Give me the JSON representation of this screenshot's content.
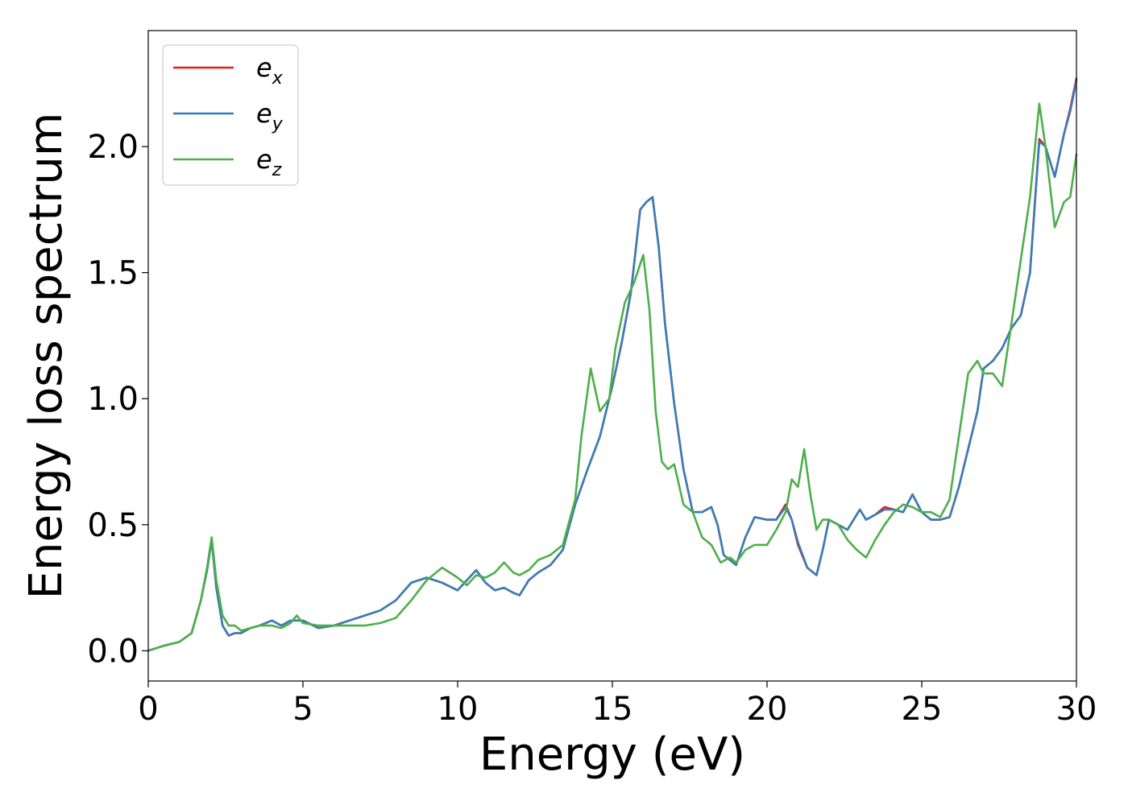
{
  "chart_data": {
    "type": "line",
    "title": "",
    "xlabel": "Energy (eV)",
    "ylabel": "Energy loss spectrum",
    "xlim": [
      0,
      30
    ],
    "ylim": [
      -0.12,
      2.46
    ],
    "xticks": [
      0,
      5,
      10,
      15,
      20,
      25,
      30
    ],
    "xtick_labels": [
      "0",
      "5",
      "10",
      "15",
      "20",
      "25",
      "30"
    ],
    "yticks": [
      0.0,
      0.5,
      1.0,
      1.5,
      2.0
    ],
    "ytick_labels": [
      "0.0",
      "0.5",
      "1.0",
      "1.5",
      "2.0"
    ],
    "grid": false,
    "legend_position": "top-left",
    "series": [
      {
        "name": "e_x",
        "label_base": "e",
        "label_sub": "x",
        "color": "#e41a1c",
        "x": [
          0,
          0.5,
          1.0,
          1.4,
          1.7,
          1.9,
          2.05,
          2.2,
          2.4,
          2.6,
          2.8,
          3.0,
          3.3,
          3.6,
          4.0,
          4.3,
          4.6,
          5.0,
          5.5,
          6.0,
          6.5,
          7.0,
          7.5,
          8.0,
          8.5,
          9.0,
          9.5,
          10.0,
          10.3,
          10.6,
          10.9,
          11.2,
          11.5,
          11.8,
          12.0,
          12.3,
          12.6,
          13.0,
          13.4,
          13.8,
          14.2,
          14.6,
          15.0,
          15.3,
          15.6,
          15.9,
          16.1,
          16.3,
          16.5,
          16.7,
          17.0,
          17.3,
          17.6,
          17.9,
          18.2,
          18.4,
          18.6,
          18.8,
          19.0,
          19.3,
          19.6,
          20.0,
          20.3,
          20.6,
          20.8,
          21.0,
          21.3,
          21.6,
          21.8,
          22.0,
          22.3,
          22.6,
          22.8,
          23.0,
          23.2,
          23.5,
          23.8,
          24.1,
          24.4,
          24.7,
          25.0,
          25.3,
          25.6,
          25.9,
          26.2,
          26.5,
          26.8,
          27.0,
          27.3,
          27.6,
          27.9,
          28.2,
          28.5,
          28.8,
          29.0,
          29.3,
          29.6,
          29.8,
          30.0
        ],
        "values": [
          0,
          0.02,
          0.035,
          0.07,
          0.2,
          0.32,
          0.44,
          0.25,
          0.1,
          0.06,
          0.07,
          0.07,
          0.09,
          0.1,
          0.12,
          0.1,
          0.12,
          0.12,
          0.09,
          0.1,
          0.12,
          0.14,
          0.16,
          0.2,
          0.27,
          0.29,
          0.27,
          0.24,
          0.28,
          0.32,
          0.27,
          0.24,
          0.25,
          0.23,
          0.22,
          0.28,
          0.31,
          0.34,
          0.4,
          0.58,
          0.72,
          0.85,
          1.05,
          1.22,
          1.42,
          1.75,
          1.78,
          1.8,
          1.6,
          1.3,
          0.98,
          0.72,
          0.55,
          0.55,
          0.57,
          0.5,
          0.38,
          0.36,
          0.34,
          0.45,
          0.53,
          0.52,
          0.52,
          0.58,
          0.52,
          0.42,
          0.33,
          0.3,
          0.4,
          0.52,
          0.5,
          0.48,
          0.52,
          0.56,
          0.52,
          0.54,
          0.57,
          0.56,
          0.55,
          0.62,
          0.55,
          0.52,
          0.52,
          0.53,
          0.65,
          0.8,
          0.95,
          1.12,
          1.15,
          1.2,
          1.28,
          1.33,
          1.5,
          2.03,
          2.0,
          1.88,
          2.05,
          2.15,
          2.27
        ]
      },
      {
        "name": "e_y",
        "label_base": "e",
        "label_sub": "y",
        "color": "#377eb8",
        "x": [
          0,
          0.5,
          1.0,
          1.4,
          1.7,
          1.9,
          2.05,
          2.2,
          2.4,
          2.6,
          2.8,
          3.0,
          3.3,
          3.6,
          4.0,
          4.3,
          4.6,
          5.0,
          5.5,
          6.0,
          6.5,
          7.0,
          7.5,
          8.0,
          8.5,
          9.0,
          9.5,
          10.0,
          10.3,
          10.6,
          10.9,
          11.2,
          11.5,
          11.8,
          12.0,
          12.3,
          12.6,
          13.0,
          13.4,
          13.8,
          14.2,
          14.6,
          15.0,
          15.3,
          15.6,
          15.9,
          16.1,
          16.3,
          16.5,
          16.7,
          17.0,
          17.3,
          17.6,
          17.9,
          18.2,
          18.4,
          18.6,
          18.8,
          19.0,
          19.3,
          19.6,
          20.0,
          20.3,
          20.6,
          20.8,
          21.0,
          21.3,
          21.6,
          21.8,
          22.0,
          22.3,
          22.6,
          22.8,
          23.0,
          23.2,
          23.5,
          23.8,
          24.1,
          24.4,
          24.7,
          25.0,
          25.3,
          25.6,
          25.9,
          26.2,
          26.5,
          26.8,
          27.0,
          27.3,
          27.6,
          27.9,
          28.2,
          28.5,
          28.8,
          29.0,
          29.3,
          29.6,
          29.8,
          30.0
        ],
        "values": [
          0,
          0.02,
          0.035,
          0.07,
          0.2,
          0.32,
          0.44,
          0.25,
          0.1,
          0.06,
          0.07,
          0.07,
          0.09,
          0.1,
          0.12,
          0.1,
          0.12,
          0.12,
          0.09,
          0.1,
          0.12,
          0.14,
          0.16,
          0.2,
          0.27,
          0.29,
          0.27,
          0.24,
          0.28,
          0.32,
          0.27,
          0.24,
          0.25,
          0.23,
          0.22,
          0.28,
          0.31,
          0.34,
          0.4,
          0.58,
          0.72,
          0.85,
          1.05,
          1.22,
          1.42,
          1.75,
          1.78,
          1.8,
          1.6,
          1.3,
          0.98,
          0.72,
          0.55,
          0.55,
          0.57,
          0.5,
          0.38,
          0.36,
          0.34,
          0.45,
          0.53,
          0.52,
          0.52,
          0.57,
          0.52,
          0.43,
          0.33,
          0.3,
          0.4,
          0.52,
          0.5,
          0.48,
          0.52,
          0.56,
          0.52,
          0.54,
          0.56,
          0.56,
          0.55,
          0.62,
          0.55,
          0.52,
          0.52,
          0.53,
          0.65,
          0.8,
          0.95,
          1.12,
          1.15,
          1.2,
          1.28,
          1.33,
          1.5,
          2.02,
          2.0,
          1.88,
          2.05,
          2.14,
          2.26
        ]
      },
      {
        "name": "e_z",
        "label_base": "e",
        "label_sub": "z",
        "color": "#4daf4a",
        "x": [
          0,
          0.5,
          1.0,
          1.4,
          1.7,
          1.9,
          2.05,
          2.2,
          2.4,
          2.6,
          2.8,
          3.0,
          3.3,
          3.6,
          4.0,
          4.3,
          4.6,
          4.8,
          5.0,
          5.5,
          6.0,
          6.5,
          7.0,
          7.5,
          8.0,
          8.5,
          9.0,
          9.5,
          10.0,
          10.3,
          10.6,
          10.9,
          11.2,
          11.5,
          11.8,
          12.0,
          12.3,
          12.6,
          13.0,
          13.4,
          13.8,
          14.0,
          14.3,
          14.6,
          14.9,
          15.1,
          15.4,
          15.7,
          16.0,
          16.2,
          16.4,
          16.6,
          16.8,
          17.0,
          17.3,
          17.6,
          17.9,
          18.2,
          18.5,
          18.8,
          19.0,
          19.3,
          19.6,
          20.0,
          20.3,
          20.6,
          20.8,
          21.0,
          21.2,
          21.4,
          21.6,
          21.8,
          22.0,
          22.3,
          22.6,
          22.9,
          23.2,
          23.5,
          23.8,
          24.1,
          24.4,
          24.7,
          25.0,
          25.3,
          25.6,
          25.9,
          26.2,
          26.5,
          26.8,
          27.0,
          27.3,
          27.6,
          27.9,
          28.2,
          28.5,
          28.8,
          29.0,
          29.3,
          29.6,
          29.8,
          30.0
        ],
        "values": [
          0,
          0.02,
          0.035,
          0.07,
          0.2,
          0.33,
          0.45,
          0.28,
          0.14,
          0.1,
          0.1,
          0.08,
          0.09,
          0.1,
          0.1,
          0.09,
          0.11,
          0.14,
          0.11,
          0.1,
          0.1,
          0.1,
          0.1,
          0.11,
          0.13,
          0.2,
          0.28,
          0.33,
          0.29,
          0.26,
          0.3,
          0.29,
          0.31,
          0.35,
          0.31,
          0.3,
          0.32,
          0.36,
          0.38,
          0.42,
          0.6,
          0.85,
          1.12,
          0.95,
          1.0,
          1.2,
          1.38,
          1.46,
          1.57,
          1.35,
          0.95,
          0.75,
          0.72,
          0.74,
          0.58,
          0.55,
          0.45,
          0.42,
          0.35,
          0.37,
          0.35,
          0.4,
          0.42,
          0.42,
          0.48,
          0.55,
          0.68,
          0.65,
          0.8,
          0.62,
          0.48,
          0.52,
          0.52,
          0.5,
          0.44,
          0.4,
          0.37,
          0.44,
          0.5,
          0.55,
          0.58,
          0.57,
          0.55,
          0.55,
          0.53,
          0.6,
          0.85,
          1.1,
          1.15,
          1.1,
          1.1,
          1.05,
          1.3,
          1.55,
          1.8,
          2.17,
          2.0,
          1.68,
          1.78,
          1.8,
          1.97
        ]
      }
    ]
  }
}
